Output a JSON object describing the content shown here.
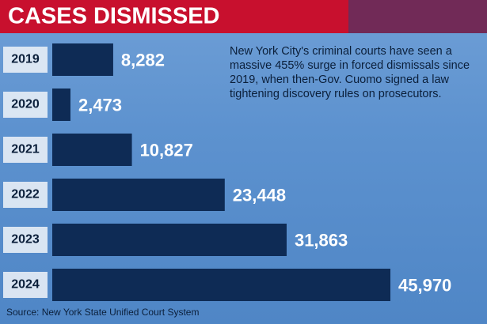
{
  "chart_data": {
    "type": "bar",
    "orientation": "horizontal",
    "title": "CASES DISMISSED",
    "annotation": "New York City's criminal courts have seen a massive 455% surge in forced dismissals since 2019, when then-Gov. Cuomo signed a law tightening discovery rules on prosecutors.",
    "source": "Source: New York State Unified Court System",
    "categories": [
      "2019",
      "2020",
      "2021",
      "2022",
      "2023",
      "2024"
    ],
    "values": [
      8282,
      2473,
      10827,
      23448,
      31863,
      45970
    ],
    "value_labels": [
      "8,282",
      "2,473",
      "10,827",
      "23,448",
      "31,863",
      "45,970"
    ],
    "color": "#0e2b55"
  }
}
